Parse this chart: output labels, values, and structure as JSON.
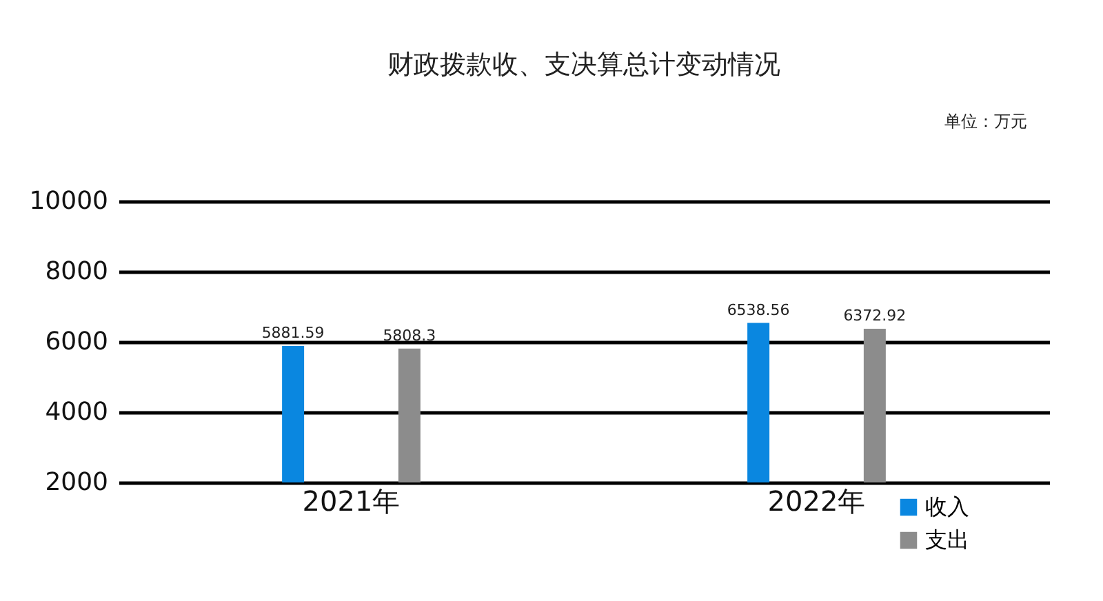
{
  "chart_data": {
    "type": "bar",
    "title": "财政拨款收、支决算总计变动情况",
    "annotations": [
      "单位：万元"
    ],
    "categories": [
      "2021年",
      "2022年"
    ],
    "series": [
      {
        "name": "收入",
        "color": "#0a87e0",
        "values": [
          5881.59,
          6538.56
        ]
      },
      {
        "name": "支出",
        "color": "#8c8c8c",
        "values": [
          5808.3,
          6372.92
        ]
      }
    ],
    "ylim": [
      2000,
      10000
    ],
    "yticks": [
      2000,
      4000,
      6000,
      8000,
      10000
    ],
    "grid": "y",
    "legend": "bottom right",
    "data_labels": true
  }
}
